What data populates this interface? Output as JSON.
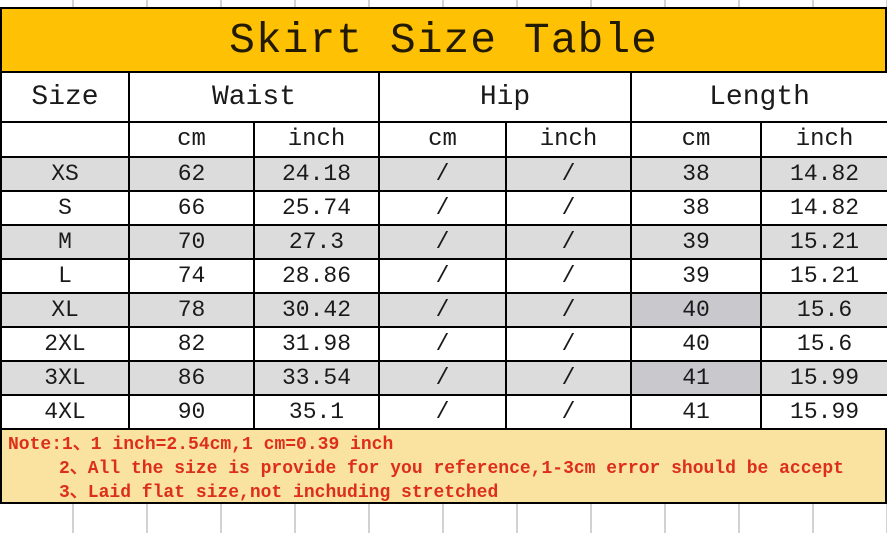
{
  "title": "Skirt Size Table",
  "colors": {
    "title_bg": "#FFC103",
    "title_text": "#231a02",
    "border": "#000000",
    "shaded_row": "#DCDCDC",
    "shaded_dark": "#C9C9CD",
    "note_bg": "#FAE3A1",
    "note_text": "#DD2E1A"
  },
  "size_table": {
    "header_groups": [
      {
        "label": "Size",
        "colspan": 1
      },
      {
        "label": "Waist",
        "colspan": 2
      },
      {
        "label": "Hip",
        "colspan": 2
      },
      {
        "label": "Length",
        "colspan": 2
      }
    ],
    "unit_row": [
      "",
      "cm",
      "inch",
      "cm",
      "inch",
      "cm",
      "inch"
    ],
    "rows": [
      {
        "cells": [
          "XS",
          "62",
          "24.18",
          "/",
          "/",
          "38",
          "14.82"
        ],
        "shaded": true,
        "darker_cells": []
      },
      {
        "cells": [
          "S",
          "66",
          "25.74",
          "/",
          "/",
          "38",
          "14.82"
        ],
        "shaded": false,
        "darker_cells": []
      },
      {
        "cells": [
          "M",
          "70",
          "27.3",
          "/",
          "/",
          "39",
          "15.21"
        ],
        "shaded": true,
        "darker_cells": []
      },
      {
        "cells": [
          "L",
          "74",
          "28.86",
          "/",
          "/",
          "39",
          "15.21"
        ],
        "shaded": false,
        "darker_cells": []
      },
      {
        "cells": [
          "XL",
          "78",
          "30.42",
          "/",
          "/",
          "40",
          "15.6"
        ],
        "shaded": true,
        "darker_cells": [
          5
        ]
      },
      {
        "cells": [
          "2XL",
          "82",
          "31.98",
          "/",
          "/",
          "40",
          "15.6"
        ],
        "shaded": false,
        "darker_cells": []
      },
      {
        "cells": [
          "3XL",
          "86",
          "33.54",
          "/",
          "/",
          "41",
          "15.99"
        ],
        "shaded": true,
        "darker_cells": [
          5
        ]
      },
      {
        "cells": [
          "4XL",
          "90",
          "35.1",
          "/",
          "/",
          "41",
          "15.99"
        ],
        "shaded": false,
        "darker_cells": []
      }
    ]
  },
  "notes": {
    "lines": [
      "Note:1、1 inch=2.54cm,1 cm=0.39 inch",
      "2、All the size is provide for you reference,1-3cm error should be accept",
      "3、Laid flat size,not inchuding stretched"
    ]
  }
}
